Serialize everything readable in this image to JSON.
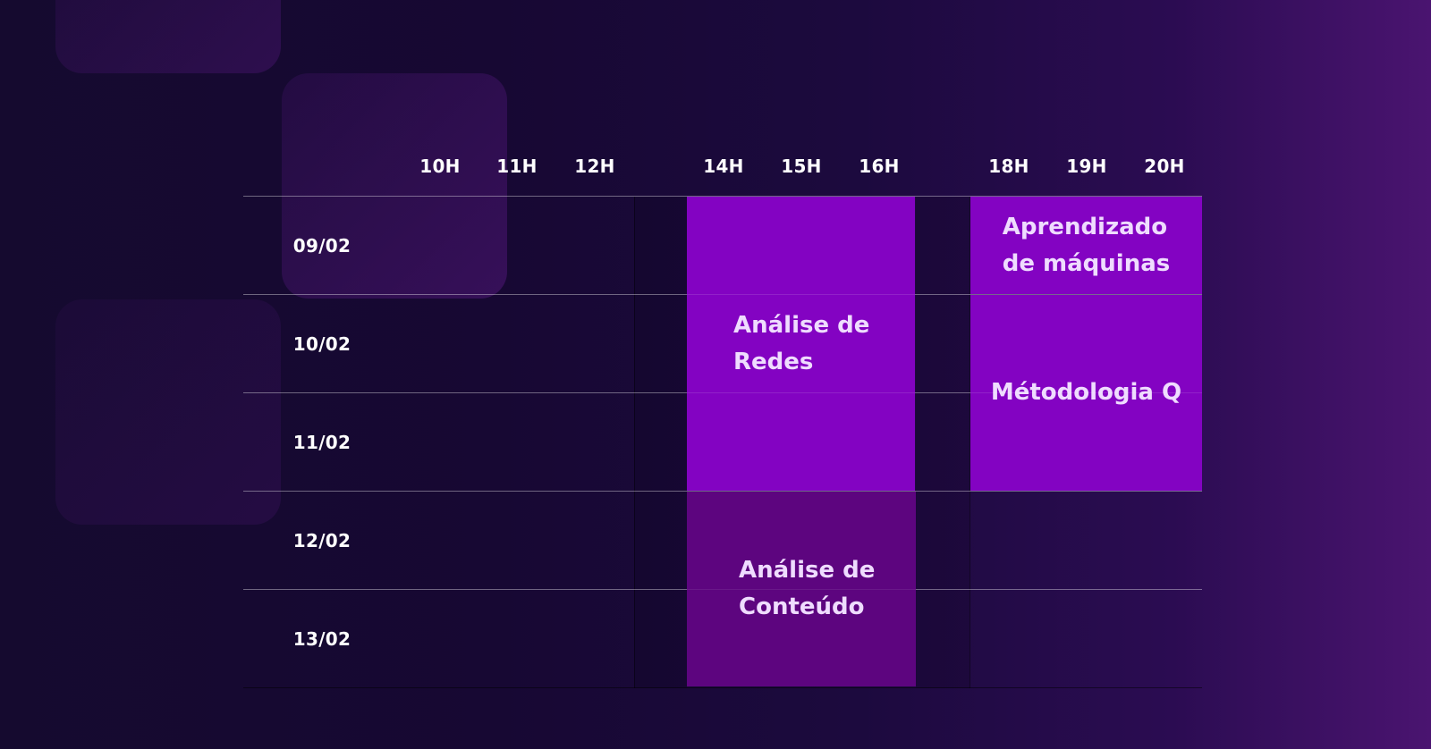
{
  "schedule": {
    "time_columns": [
      "10H",
      "11H",
      "12H",
      "14H",
      "15H",
      "16H",
      "18H",
      "19H",
      "20H"
    ],
    "dates": [
      "09/02",
      "10/02",
      "11/02",
      "12/02",
      "13/02"
    ],
    "sessions": [
      {
        "title_lines": [
          "Análise de",
          "Redes"
        ],
        "dates": [
          "09/02",
          "10/02",
          "11/02"
        ],
        "hours": "14H–16H",
        "color": "#8303c2"
      },
      {
        "title_lines": [
          "Aprendizado",
          "de máquinas"
        ],
        "dates": [
          "09/02"
        ],
        "hours": "18H–20H",
        "color": "#8303c2"
      },
      {
        "title_lines": [
          "Métodologia Q"
        ],
        "dates": [
          "10/02",
          "11/02"
        ],
        "hours": "18H–20H",
        "color": "#8303c2"
      },
      {
        "title_lines": [
          "Análise de",
          "Conteúdo"
        ],
        "dates": [
          "12/02",
          "13/02"
        ],
        "hours": "14H–16H",
        "color": "#5d057f"
      }
    ]
  },
  "colors": {
    "background_start": "#150a2f",
    "background_end": "#4a1470",
    "session_bright": "#8303c2",
    "session_dark": "#5d057f",
    "label_text": "#ffffff",
    "session_text": "#efdcff"
  }
}
